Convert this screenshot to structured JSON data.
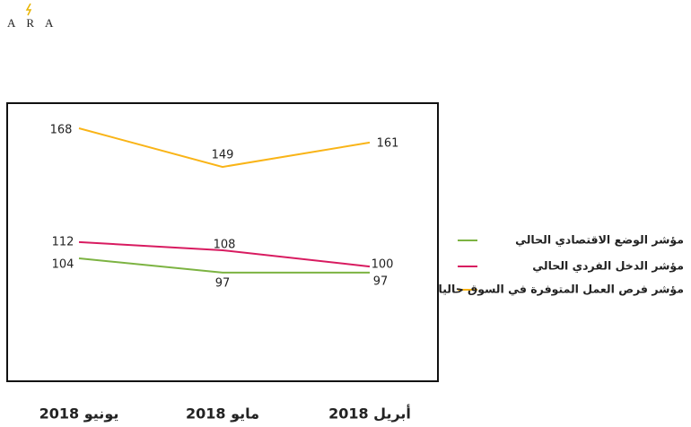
{
  "header": {
    "logo": "ARA"
  },
  "chart_data": {
    "type": "line",
    "categories": [
      "يونيو 2018",
      "مايو 2018",
      "أبريل 2018"
    ],
    "series": [
      {
        "name": "مؤشر الوضع الاقتصادي الحالي",
        "color": "#7cb342",
        "values": [
          104,
          97,
          97
        ]
      },
      {
        "name": "مؤشر الدخل الفردي الحالي",
        "color": "#d81b60",
        "values": [
          112,
          108,
          100
        ]
      },
      {
        "name": "مؤشر فرص العمل المتوفرة في السوق حاليا",
        "color": "#f9b417",
        "values": [
          168,
          149,
          161
        ]
      }
    ],
    "legend": "right"
  }
}
